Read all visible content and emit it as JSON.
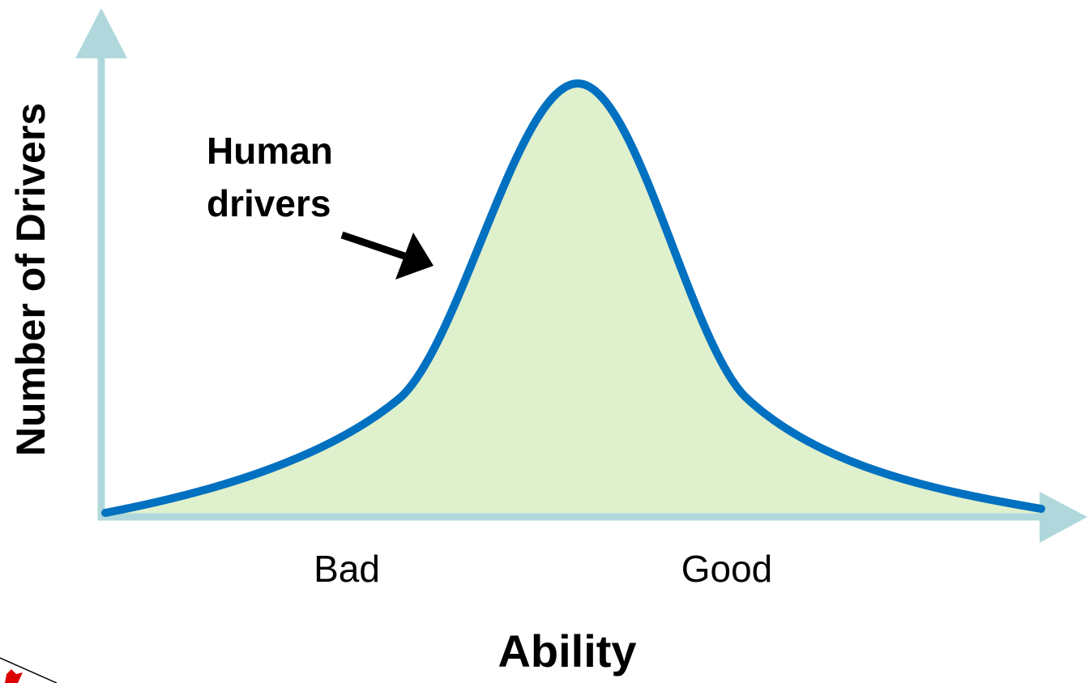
{
  "axes": {
    "y_label": "Number of Drivers",
    "x_label": "Ability",
    "x_ticks": [
      "Bad",
      "Good"
    ]
  },
  "annotation": {
    "lines": [
      "Human",
      "drivers"
    ]
  }
}
